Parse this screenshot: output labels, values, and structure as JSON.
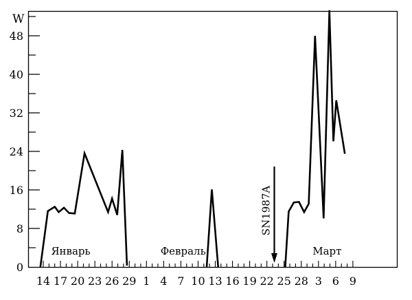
{
  "chart_data": {
    "type": "line",
    "ylabel": "W",
    "ylim": [
      0,
      53
    ],
    "yticks": [
      0,
      8,
      16,
      24,
      32,
      40,
      48
    ],
    "xticks": [
      {
        "i": 0,
        "label": "14"
      },
      {
        "i": 3,
        "label": "17"
      },
      {
        "i": 6,
        "label": "20"
      },
      {
        "i": 9,
        "label": "23"
      },
      {
        "i": 12,
        "label": "26"
      },
      {
        "i": 15,
        "label": "29"
      },
      {
        "i": 18,
        "label": "1"
      },
      {
        "i": 21,
        "label": "4"
      },
      {
        "i": 24,
        "label": "7"
      },
      {
        "i": 27,
        "label": "10"
      },
      {
        "i": 30,
        "label": "13"
      },
      {
        "i": 33,
        "label": "16"
      },
      {
        "i": 36,
        "label": "19"
      },
      {
        "i": 39,
        "label": "22"
      },
      {
        "i": 42,
        "label": "25"
      },
      {
        "i": 45,
        "label": "28"
      },
      {
        "i": 48,
        "label": "3"
      },
      {
        "i": 51,
        "label": "6"
      },
      {
        "i": 54,
        "label": "9"
      }
    ],
    "months": [
      {
        "i": 4.8,
        "label": "Январь"
      },
      {
        "i": 24.4,
        "label": "Февраль"
      },
      {
        "i": 49.5,
        "label": "Март"
      }
    ],
    "annotation": {
      "label": "SN1987A",
      "i": 40.3
    },
    "segments": [
      [
        [
          -0.5,
          0
        ],
        [
          0.8,
          11.6
        ],
        [
          2.0,
          12.5
        ],
        [
          2.7,
          11.4
        ],
        [
          3.6,
          12.3
        ],
        [
          4.5,
          11.2
        ],
        [
          5.5,
          11.1
        ],
        [
          7.2,
          23.6
        ],
        [
          11.3,
          11.4
        ],
        [
          12.0,
          14.2
        ],
        [
          12.9,
          10.8
        ],
        [
          13.8,
          24.3
        ],
        [
          14.6,
          0.3
        ]
      ],
      [
        [
          28.5,
          0
        ],
        [
          29.4,
          16.1
        ],
        [
          30.5,
          0
        ]
      ],
      [
        [
          42.2,
          0
        ],
        [
          42.8,
          11.5
        ],
        [
          43.7,
          13.4
        ],
        [
          44.6,
          13.5
        ],
        [
          45.5,
          11.4
        ],
        [
          46.3,
          13.1
        ],
        [
          47.4,
          48.0
        ],
        [
          48.9,
          10.1
        ],
        [
          49.9,
          53.3
        ],
        [
          50.6,
          26.1
        ],
        [
          51.1,
          34.6
        ],
        [
          52.6,
          23.5
        ]
      ]
    ]
  }
}
